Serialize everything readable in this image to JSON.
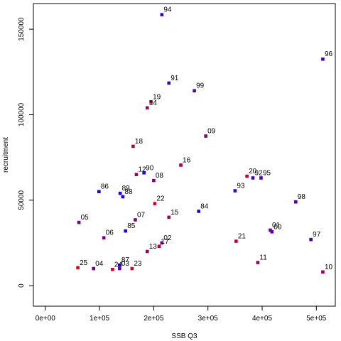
{
  "chart_data": {
    "type": "scatter",
    "title": "",
    "xlabel": "SSB Q3",
    "ylabel": "recruitment",
    "xlim": [
      -22000,
      535000
    ],
    "ylim": [
      -12000,
      165000
    ],
    "x_ticks": [
      0,
      100000,
      200000,
      300000,
      400000,
      500000
    ],
    "x_tick_labels": [
      "0e+00",
      "1e+05",
      "2e+05",
      "3e+05",
      "4e+05",
      "5e+05"
    ],
    "y_ticks": [
      0,
      50000,
      100000,
      150000
    ],
    "y_tick_labels": [
      "0",
      "50000",
      "100000",
      "150000"
    ],
    "grid": false,
    "points": [
      {
        "label": "84",
        "x": 283000,
        "y": 43500,
        "color": "#2200dd"
      },
      {
        "label": "85",
        "x": 148000,
        "y": 32000,
        "color": "#2200dd"
      },
      {
        "label": "86",
        "x": 99000,
        "y": 55000,
        "color": "#1100ee"
      },
      {
        "label": "87",
        "x": 137000,
        "y": 12000,
        "color": "#2a00d4"
      },
      {
        "label": "88",
        "x": 143000,
        "y": 52000,
        "color": "#2000de"
      },
      {
        "label": "89",
        "x": 138000,
        "y": 54000,
        "color": "#2600d8"
      },
      {
        "label": "90",
        "x": 182000,
        "y": 66000,
        "color": "#2a00d4"
      },
      {
        "label": "91",
        "x": 228000,
        "y": 118500,
        "color": "#3000ce"
      },
      {
        "label": "92",
        "x": 383000,
        "y": 63000,
        "color": "#3400ca"
      },
      {
        "label": "93",
        "x": 350000,
        "y": 55500,
        "color": "#3a00c4"
      },
      {
        "label": "94",
        "x": 215000,
        "y": 158500,
        "color": "#3e00c0"
      },
      {
        "label": "95",
        "x": 398000,
        "y": 63000,
        "color": "#4400ba"
      },
      {
        "label": "96",
        "x": 512000,
        "y": 132500,
        "color": "#4800b6"
      },
      {
        "label": "97",
        "x": 490000,
        "y": 27000,
        "color": "#4e00b0"
      },
      {
        "label": "98",
        "x": 462000,
        "y": 49000,
        "color": "#5200ac"
      },
      {
        "label": "99",
        "x": 275000,
        "y": 114000,
        "color": "#5800a6"
      },
      {
        "label": "00",
        "x": 418000,
        "y": 31500,
        "color": "#5c00a2"
      },
      {
        "label": "01",
        "x": 415000,
        "y": 32500,
        "color": "#62009c"
      },
      {
        "label": "02",
        "x": 215000,
        "y": 25000,
        "color": "#660098"
      },
      {
        "label": "03",
        "x": 137000,
        "y": 10000,
        "color": "#6c0092"
      },
      {
        "label": "04",
        "x": 89000,
        "y": 10000,
        "color": "#70008e"
      },
      {
        "label": "05",
        "x": 62000,
        "y": 37000,
        "color": "#760088"
      },
      {
        "label": "06",
        "x": 108000,
        "y": 28000,
        "color": "#7a0084"
      },
      {
        "label": "07",
        "x": 166000,
        "y": 38500,
        "color": "#80007e"
      },
      {
        "label": "08",
        "x": 200000,
        "y": 61500,
        "color": "#84007a"
      },
      {
        "label": "09",
        "x": 296000,
        "y": 87500,
        "color": "#8a0074"
      },
      {
        "label": "10",
        "x": 512000,
        "y": 8000,
        "color": "#8e0070"
      },
      {
        "label": "11",
        "x": 392000,
        "y": 13500,
        "color": "#94006a"
      },
      {
        "label": "12",
        "x": 168000,
        "y": 65000,
        "color": "#980066"
      },
      {
        "label": "13",
        "x": 188000,
        "y": 20000,
        "color": "#9e0060"
      },
      {
        "label": "14",
        "x": 188000,
        "y": 104000,
        "color": "#a2005c"
      },
      {
        "label": "15",
        "x": 228000,
        "y": 40000,
        "color": "#a80056"
      },
      {
        "label": "16",
        "x": 250000,
        "y": 70500,
        "color": "#ac0052"
      },
      {
        "label": "17",
        "x": 210000,
        "y": 23000,
        "color": "#b2004c"
      },
      {
        "label": "18",
        "x": 162000,
        "y": 81500,
        "color": "#b60048"
      },
      {
        "label": "19",
        "x": 195000,
        "y": 107500,
        "color": "#bc0042"
      },
      {
        "label": "20",
        "x": 372000,
        "y": 64000,
        "color": "#c0003e"
      },
      {
        "label": "21",
        "x": 352000,
        "y": 26000,
        "color": "#c60038"
      },
      {
        "label": "22",
        "x": 202000,
        "y": 48000,
        "color": "#ca0034"
      },
      {
        "label": "23",
        "x": 160000,
        "y": 10000,
        "color": "#d0002e"
      },
      {
        "label": "24",
        "x": 124000,
        "y": 9500,
        "color": "#d4002a"
      },
      {
        "label": "25",
        "x": 60000,
        "y": 10500,
        "color": "#e00020"
      }
    ]
  }
}
